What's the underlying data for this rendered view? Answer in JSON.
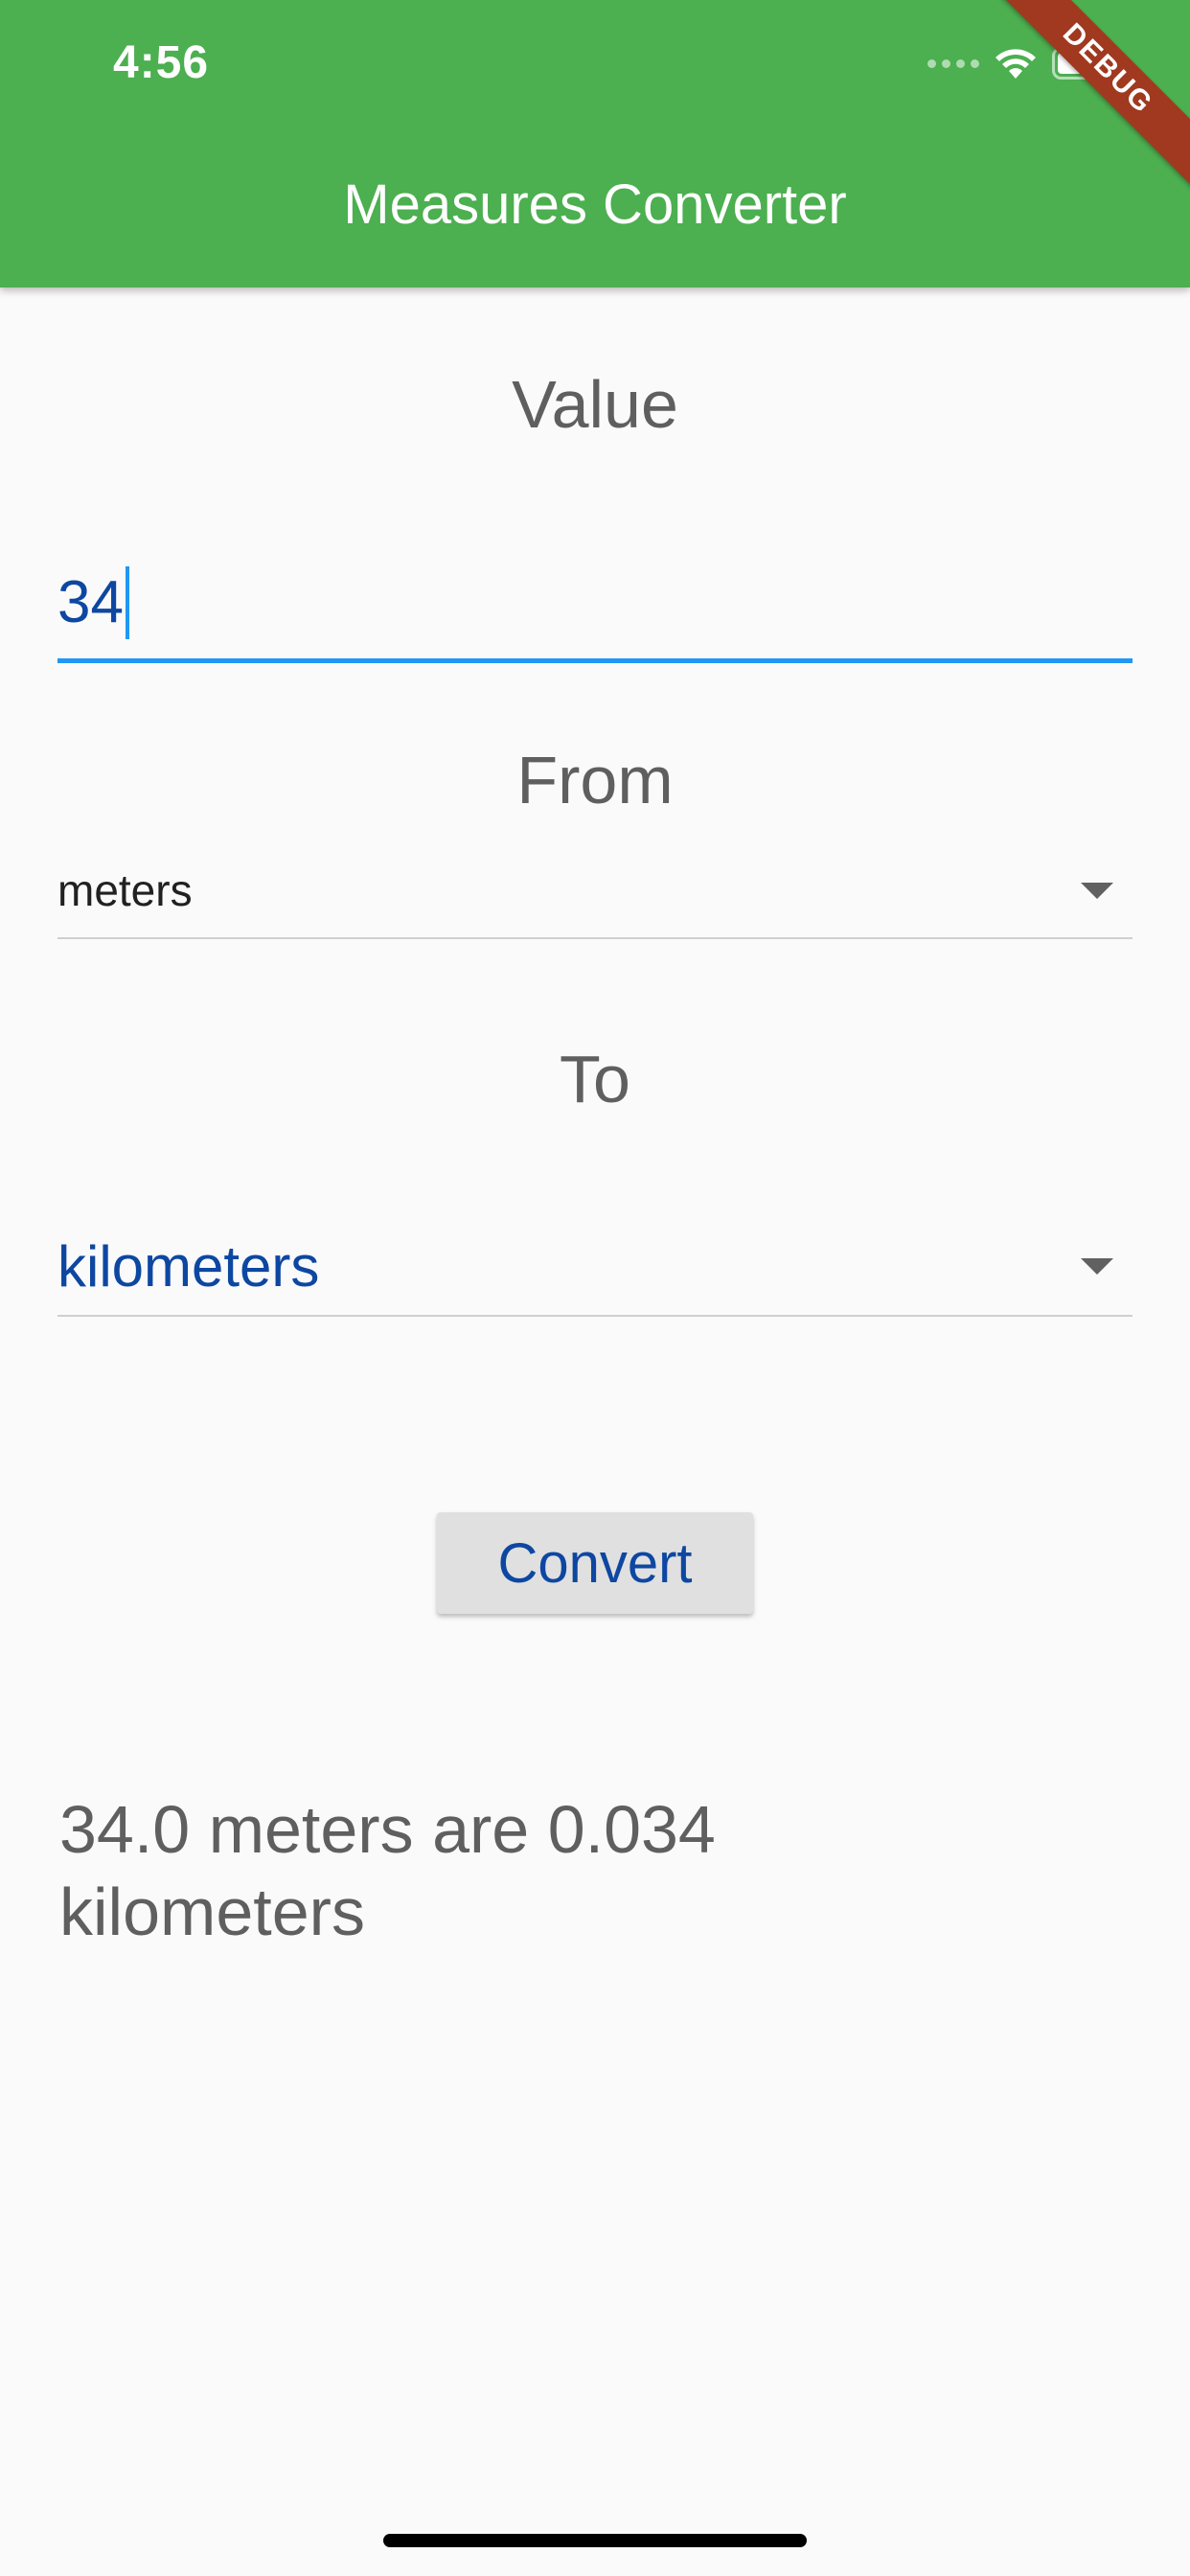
{
  "status_bar": {
    "time": "4:56",
    "icons": [
      "cellular-signal-icon",
      "wifi-icon",
      "battery-icon"
    ]
  },
  "app_bar": {
    "title": "Measures Converter",
    "color": "#4caf50"
  },
  "debug_banner": {
    "label": "DEBUG",
    "color": "#a0391f"
  },
  "form": {
    "value_label": "Value",
    "value_input": "34",
    "from_label": "From",
    "from_selected": "meters",
    "to_label": "To",
    "to_selected": "kilometers",
    "convert_label": "Convert"
  },
  "result": {
    "text": "34.0 meters are 0.034 kilometers"
  },
  "colors": {
    "accent": "#2196f3",
    "accent_dark": "#0d47a1",
    "background": "#fafafa",
    "button": "#e0e0e0"
  }
}
